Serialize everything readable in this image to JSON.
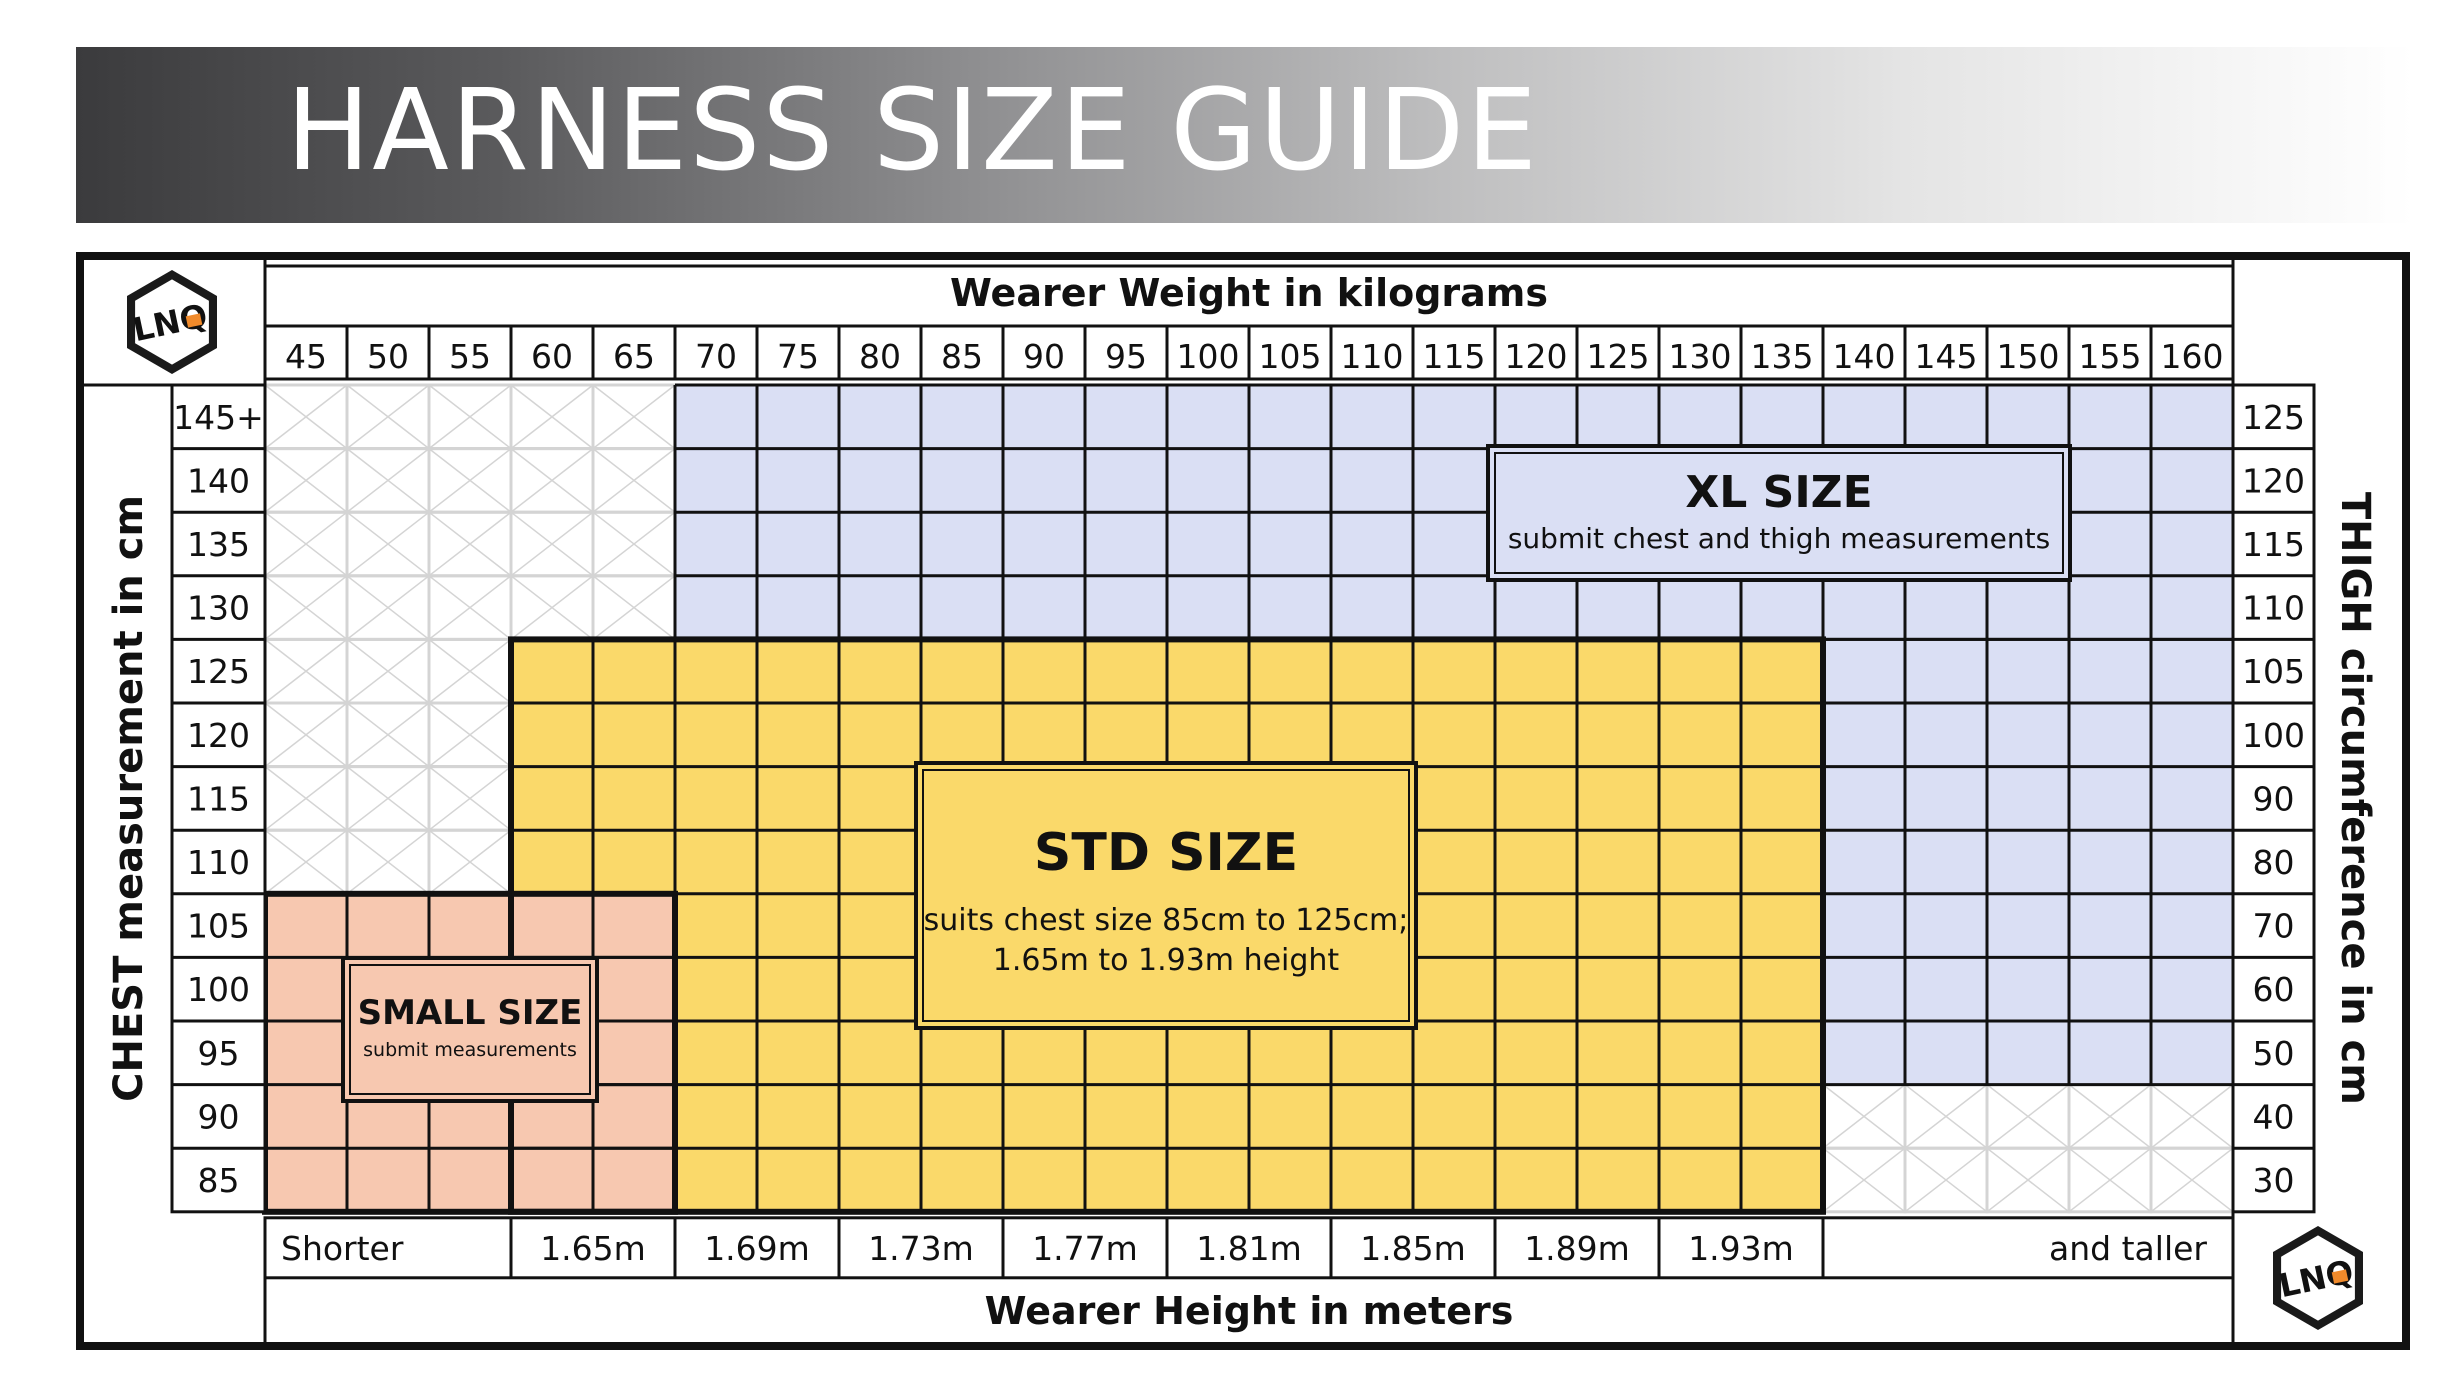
{
  "title": "HARNESS SIZE GUIDE",
  "brand_logo": "LNQ",
  "weight_axis": {
    "label": "Wearer Weight in kilograms",
    "ticks": [
      "45",
      "50",
      "55",
      "60",
      "65",
      "70",
      "75",
      "80",
      "85",
      "90",
      "95",
      "100",
      "105",
      "110",
      "115",
      "120",
      "125",
      "130",
      "135",
      "140",
      "145",
      "150",
      "155",
      "160"
    ]
  },
  "chest_axis": {
    "label": "CHEST measurement in cm",
    "ticks": [
      "145+",
      "140",
      "135",
      "130",
      "125",
      "120",
      "115",
      "110",
      "105",
      "100",
      "95",
      "90",
      "85"
    ]
  },
  "thigh_axis": {
    "label": "THIGH circumference in cm",
    "ticks": [
      "125",
      "120",
      "115",
      "110",
      "105",
      "100",
      "90",
      "80",
      "70",
      "60",
      "50",
      "40",
      "30"
    ]
  },
  "height_axis": {
    "label": "Wearer Height in meters",
    "ticks": [
      "Shorter",
      "1.65m",
      "1.69m",
      "1.73m",
      "1.77m",
      "1.81m",
      "1.85m",
      "1.89m",
      "1.93m",
      "and taller"
    ]
  },
  "zones": {
    "xl": {
      "title": "XL SIZE",
      "subtitle": "submit chest and thigh measurements",
      "color": "#dadff4"
    },
    "std": {
      "title": "STD SIZE",
      "line1": "suits chest size 85cm to 125cm;",
      "line2": "1.65m to 1.93m height",
      "color": "#fad96a"
    },
    "small": {
      "title": "SMALL SIZE",
      "subtitle": "submit measurements",
      "color": "#f7c8b0"
    }
  },
  "colors": {
    "na_fill": "#ffffff",
    "na_lines": "#d4d4d4",
    "grid": "#111111"
  }
}
